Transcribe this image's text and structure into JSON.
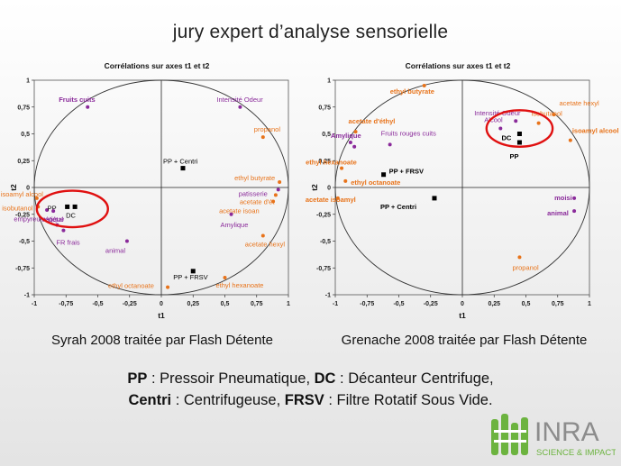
{
  "slide": {
    "title": "jury expert d’analyse sensorielle",
    "captions": [
      "Syrah 2008 traitée par Flash Détente",
      "Grenache 2008 traitée par Flash Détente"
    ],
    "legend_line1": [
      {
        "abbr": "PP",
        "text": " : Pressoir Pneumatique, "
      },
      {
        "abbr": "DC",
        "text": " : Décanteur Centrifuge,"
      }
    ],
    "legend_line2": [
      {
        "abbr": "Centri",
        "text": " : Centrifugeuse, "
      },
      {
        "abbr": "FRSV",
        "text": " : Filtre Rotatif Sous Vide."
      }
    ],
    "logo": {
      "name": "INRA",
      "tagline": "SCIENCE & IMPACT",
      "colors": {
        "green": "#6cb33f",
        "grey": "#8c8c8c"
      }
    }
  },
  "colors": {
    "orange": "#e8731a",
    "purple": "#8a2a9a",
    "black": "#000000",
    "red_circle": "#e01010"
  },
  "chart_data": [
    {
      "type": "scatter",
      "title": "Corrélations sur axes t1 et t2",
      "xlabel": "t1",
      "ylabel": "t2",
      "xlim": [
        -1,
        1
      ],
      "ylim": [
        -1,
        1
      ],
      "xticks": [
        "-1",
        "-0,75",
        "-0,5",
        "-0,25",
        "0",
        "0,25",
        "0,5",
        "0,75",
        "1"
      ],
      "yticks": [
        "-1",
        "-0,75",
        "-0,5",
        "-0,25",
        "0",
        "0,25",
        "0,5",
        "0,75",
        "1"
      ],
      "grid": false,
      "unit_circle": true,
      "highlight_circle": {
        "cx": -0.7,
        "cy": -0.2,
        "rx": 0.28,
        "ry": 0.17
      },
      "points": [
        {
          "label": "Fruits cuits",
          "x": -0.58,
          "y": 0.75,
          "color": "purple",
          "marker": "dot",
          "bold": true,
          "dx": -32,
          "dy": -6
        },
        {
          "label": "Intensité Odeur",
          "x": 0.62,
          "y": 0.75,
          "color": "purple",
          "marker": "dot",
          "dx": -26,
          "dy": -6
        },
        {
          "label": "propanol",
          "x": 0.8,
          "y": 0.47,
          "color": "orange",
          "marker": "dot",
          "dx": -10,
          "dy": -6
        },
        {
          "label": "PP + Centri",
          "x": 0.17,
          "y": 0.18,
          "color": "black",
          "marker": "square",
          "dx": -22,
          "dy": -5
        },
        {
          "label": "ethyl butyrate",
          "x": 0.93,
          "y": 0.05,
          "color": "orange",
          "marker": "dot",
          "dx": -50,
          "dy": -2
        },
        {
          "label": "patisserie",
          "x": 0.92,
          "y": -0.02,
          "color": "purple",
          "marker": "dot",
          "dx": -44,
          "dy": 7
        },
        {
          "label": "acetate d'ét",
          "x": 0.9,
          "y": -0.07,
          "color": "orange",
          "marker": "dot",
          "dx": -40,
          "dy": 10
        },
        {
          "label": "acetate isoan",
          "x": 0.88,
          "y": -0.13,
          "color": "orange",
          "marker": "dot",
          "dx": -60,
          "dy": 13
        },
        {
          "label": "Amylique",
          "x": 0.55,
          "y": -0.25,
          "color": "purple",
          "marker": "dot",
          "dx": -12,
          "dy": 14
        },
        {
          "label": "acetate hexyl",
          "x": 0.8,
          "y": -0.45,
          "color": "orange",
          "marker": "dot",
          "dx": -20,
          "dy": 12
        },
        {
          "label": "PP + FRSV",
          "x": 0.25,
          "y": -0.78,
          "color": "black",
          "marker": "square",
          "dx": -22,
          "dy": 9
        },
        {
          "label": "ethyl hexanoate",
          "x": 0.5,
          "y": -0.84,
          "color": "orange",
          "marker": "dot",
          "dx": -10,
          "dy": 11
        },
        {
          "label": "ethyl octanoate",
          "x": 0.05,
          "y": -0.93,
          "color": "orange",
          "marker": "dot",
          "dx": -66,
          "dy": 1
        },
        {
          "label": "isoamyl alcool",
          "x": -0.98,
          "y": -0.1,
          "color": "orange",
          "marker": "dot",
          "dx": -40,
          "dy": -2
        },
        {
          "label": "isobutanol",
          "x": -0.97,
          "y": -0.18,
          "color": "orange",
          "marker": "dot",
          "dx": -40,
          "dy": 4
        },
        {
          "label": "végétal",
          "x": -0.9,
          "y": -0.21,
          "color": "purple",
          "marker": "dot",
          "dx": -6,
          "dy": 13
        },
        {
          "label": "PP",
          "x": -0.74,
          "y": -0.18,
          "color": "black",
          "marker": "square",
          "dx": -22,
          "dy": 4
        },
        {
          "label": "DC",
          "x": -0.68,
          "y": -0.18,
          "color": "black",
          "marker": "square",
          "dx": -10,
          "dy": 12
        },
        {
          "label": "",
          "x": -0.85,
          "y": -0.22,
          "color": "purple",
          "marker": "dot"
        },
        {
          "label": "empyreumatique",
          "x": -0.82,
          "y": -0.35,
          "color": "purple",
          "marker": "dot",
          "dx": -48,
          "dy": -4
        },
        {
          "label": "FR frais",
          "x": -0.77,
          "y": -0.4,
          "color": "purple",
          "marker": "dot",
          "dx": -8,
          "dy": 16
        },
        {
          "label": "animal",
          "x": -0.27,
          "y": -0.5,
          "color": "purple",
          "marker": "dot",
          "dx": -24,
          "dy": 13
        }
      ]
    },
    {
      "type": "scatter",
      "title": "Corrélations sur axes t1 et t2",
      "xlabel": "t1",
      "ylabel": "t2",
      "xlim": [
        -1,
        1
      ],
      "ylim": [
        -1,
        1
      ],
      "xticks": [
        "-1",
        "-0,75",
        "-0,5",
        "-0,25",
        "0",
        "0,25",
        "0,5",
        "0,75",
        "1"
      ],
      "yticks": [
        "-1",
        "-0,75",
        "-0,5",
        "-0,25",
        "0",
        "0,25",
        "0,5",
        "0,75",
        "1"
      ],
      "grid": false,
      "unit_circle": true,
      "highlight_circle": {
        "cx": 0.45,
        "cy": 0.55,
        "rx": 0.26,
        "ry": 0.17
      },
      "points": [
        {
          "label": "ethyl butyrate",
          "x": -0.3,
          "y": 0.95,
          "color": "orange",
          "marker": "dot",
          "bold": true,
          "dx": -38,
          "dy": 9
        },
        {
          "label": "acetate hexyl",
          "x": 0.72,
          "y": 0.68,
          "color": "orange",
          "marker": "dot",
          "dx": 6,
          "dy": -10
        },
        {
          "label": "isobutanol",
          "x": 0.6,
          "y": 0.6,
          "color": "orange",
          "marker": "dot",
          "dx": -8,
          "dy": -8
        },
        {
          "label": "Intensité Odeur",
          "x": 0.42,
          "y": 0.62,
          "color": "purple",
          "marker": "dot",
          "dx": -46,
          "dy": -6
        },
        {
          "label": "Alcool",
          "x": 0.3,
          "y": 0.55,
          "color": "purple",
          "marker": "dot",
          "dx": -18,
          "dy": -7
        },
        {
          "label": "isoamyl alcool",
          "x": 0.85,
          "y": 0.44,
          "color": "orange",
          "marker": "dot",
          "bold": true,
          "dx": 2,
          "dy": -8
        },
        {
          "label": "DC",
          "x": 0.45,
          "y": 0.5,
          "color": "black",
          "marker": "square",
          "bold": true,
          "dx": -20,
          "dy": 7
        },
        {
          "label": "PP",
          "x": 0.45,
          "y": 0.42,
          "color": "black",
          "marker": "square",
          "bold": true,
          "dx": -11,
          "dy": 18
        },
        {
          "label": "acetate d'éthyl",
          "x": -0.84,
          "y": 0.52,
          "color": "orange",
          "marker": "dot",
          "bold": true,
          "dx": -8,
          "dy": -9
        },
        {
          "label": "Fruits rouges cuits",
          "x": -0.57,
          "y": 0.4,
          "color": "purple",
          "marker": "dot",
          "dx": -10,
          "dy": -10
        },
        {
          "label": "Amylique",
          "x": -0.88,
          "y": 0.42,
          "color": "purple",
          "marker": "dot",
          "bold": true,
          "dx": -22,
          "dy": -5
        },
        {
          "label": "",
          "x": -0.85,
          "y": 0.38,
          "color": "purple",
          "marker": "dot"
        },
        {
          "label": "PP + FRSV",
          "x": -0.62,
          "y": 0.12,
          "color": "black",
          "marker": "square",
          "bold": true,
          "dx": 6,
          "dy": -1
        },
        {
          "label": "ethyl hexanoate",
          "x": -0.95,
          "y": 0.18,
          "color": "orange",
          "marker": "dot",
          "bold": true,
          "dx": -40,
          "dy": 0
        },
        {
          "label": "ethyl octanoate",
          "x": -0.92,
          "y": 0.06,
          "color": "orange",
          "marker": "dot",
          "bold": true,
          "dx": 6,
          "dy": 4
        },
        {
          "label": "acetate isoamyl",
          "x": -0.98,
          "y": -0.1,
          "color": "orange",
          "marker": "dot",
          "bold": true,
          "dx": -36,
          "dy": 4
        },
        {
          "label": "PP + Centri",
          "x": -0.22,
          "y": -0.1,
          "color": "black",
          "marker": "square",
          "bold": true,
          "dx": -60,
          "dy": 12
        },
        {
          "label": "moisi",
          "x": 0.88,
          "y": -0.1,
          "color": "purple",
          "marker": "dot",
          "bold": true,
          "dx": -22,
          "dy": 2
        },
        {
          "label": "animal",
          "x": 0.88,
          "y": -0.22,
          "color": "purple",
          "marker": "dot",
          "bold": true,
          "dx": -30,
          "dy": 5
        },
        {
          "label": "propanol",
          "x": 0.45,
          "y": -0.65,
          "color": "orange",
          "marker": "dot",
          "dx": -8,
          "dy": 14
        }
      ]
    }
  ]
}
